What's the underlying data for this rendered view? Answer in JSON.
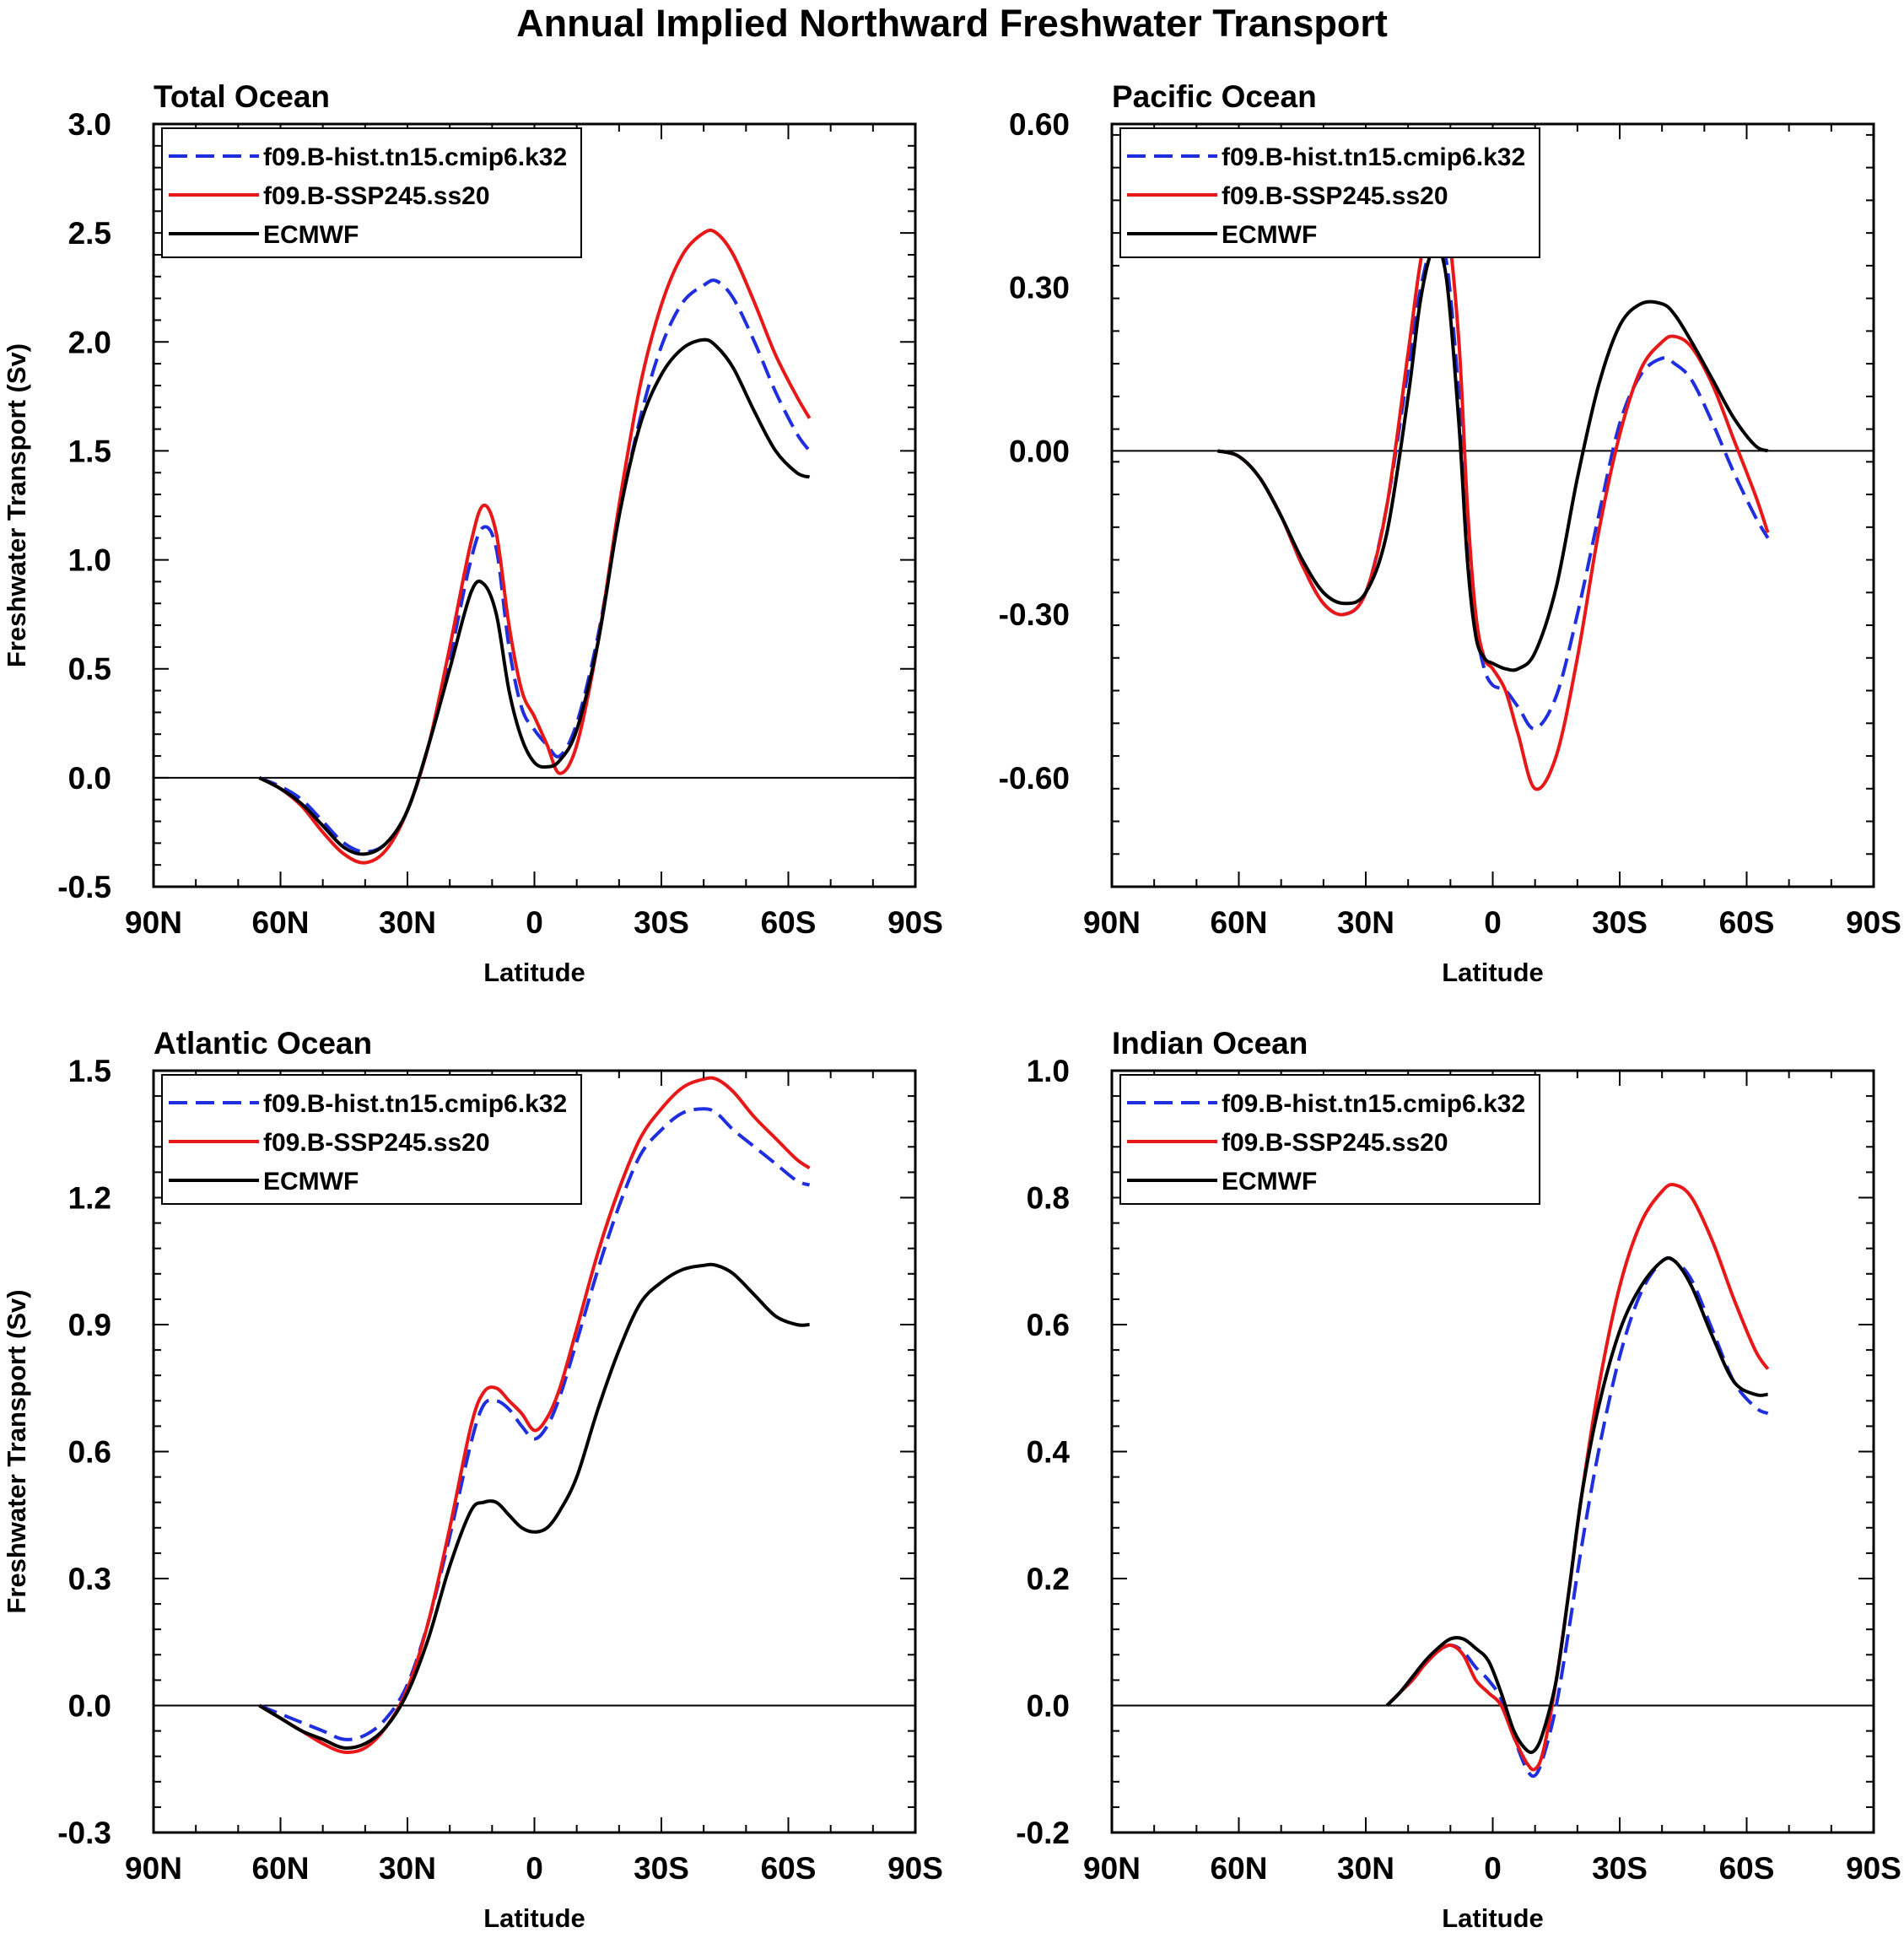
{
  "figure": {
    "title": "Annual Implied Northward Freshwater Transport"
  },
  "style": {
    "colors": {
      "f09.B-hist.tn15.cmip6.k32": "#1f2fe0",
      "f09.B-SSP245.ss20": "#e81818",
      "ECMWF": "#000000"
    },
    "dash": {
      "f09.B-hist.tn15.cmip6.k32": "dashed",
      "f09.B-SSP245.ss20": "solid",
      "ECMWF": "solid"
    }
  },
  "chart_data": [
    {
      "type": "line",
      "title": "Total Ocean",
      "xlabel": "Latitude",
      "ylabel": "Freshwater Transport (Sv)",
      "xlim": [
        -90,
        90
      ],
      "x_note": "positive = degrees N, negative = degrees S",
      "xticks": [
        90,
        60,
        30,
        0,
        -30,
        -60,
        -90
      ],
      "xticklabels": [
        "90N",
        "60N",
        "30N",
        "0",
        "30S",
        "60S",
        "90S"
      ],
      "ylim": [
        -0.5,
        3.0
      ],
      "yticks": [
        -0.5,
        0.0,
        0.5,
        1.0,
        1.5,
        2.0,
        2.5,
        3.0
      ],
      "yticklabels": [
        "-0.5",
        "0.0",
        "0.5",
        "1.0",
        "1.5",
        "2.0",
        "2.5",
        "3.0"
      ],
      "zero_line": true,
      "legend": {
        "placement": "top-left",
        "entries": [
          "f09.B-hist.tn15.cmip6.k32",
          "f09.B-SSP245.ss20",
          "ECMWF"
        ]
      },
      "series": [
        {
          "name": "f09.B-hist.tn15.cmip6.k32",
          "x": [
            65,
            60,
            55,
            50,
            45,
            40,
            35,
            30,
            25,
            20,
            15,
            12,
            9,
            6,
            3,
            0,
            -3,
            -6,
            -10,
            -15,
            -20,
            -25,
            -30,
            -35,
            -40,
            -43,
            -47,
            -52,
            -57,
            -62,
            -65
          ],
          "y": [
            0,
            -0.04,
            -0.1,
            -0.2,
            -0.3,
            -0.34,
            -0.3,
            -0.15,
            0.15,
            0.55,
            1.0,
            1.15,
            1.05,
            0.6,
            0.32,
            0.22,
            0.15,
            0.1,
            0.25,
            0.65,
            1.2,
            1.65,
            1.98,
            2.18,
            2.26,
            2.28,
            2.2,
            2.0,
            1.77,
            1.58,
            1.5
          ]
        },
        {
          "name": "f09.B-SSP245.ss20",
          "x": [
            65,
            60,
            55,
            50,
            45,
            40,
            35,
            30,
            25,
            20,
            15,
            12,
            9,
            6,
            3,
            0,
            -3,
            -6,
            -10,
            -15,
            -20,
            -25,
            -30,
            -35,
            -40,
            -43,
            -47,
            -52,
            -57,
            -62,
            -65
          ],
          "y": [
            0,
            -0.05,
            -0.13,
            -0.25,
            -0.35,
            -0.39,
            -0.33,
            -0.15,
            0.15,
            0.6,
            1.08,
            1.25,
            1.12,
            0.7,
            0.4,
            0.28,
            0.15,
            0.02,
            0.15,
            0.62,
            1.25,
            1.8,
            2.17,
            2.4,
            2.5,
            2.5,
            2.4,
            2.18,
            1.94,
            1.75,
            1.65
          ]
        },
        {
          "name": "ECMWF",
          "x": [
            65,
            60,
            55,
            50,
            45,
            40,
            35,
            30,
            25,
            20,
            15,
            12,
            9,
            6,
            3,
            0,
            -3,
            -6,
            -10,
            -15,
            -20,
            -25,
            -30,
            -35,
            -40,
            -43,
            -47,
            -52,
            -57,
            -62,
            -65
          ],
          "y": [
            0,
            -0.05,
            -0.12,
            -0.22,
            -0.32,
            -0.35,
            -0.3,
            -0.15,
            0.15,
            0.5,
            0.85,
            0.89,
            0.75,
            0.4,
            0.18,
            0.07,
            0.05,
            0.08,
            0.22,
            0.62,
            1.2,
            1.62,
            1.85,
            1.97,
            2.01,
            1.98,
            1.88,
            1.68,
            1.5,
            1.4,
            1.38
          ]
        }
      ]
    },
    {
      "type": "line",
      "title": "Pacific Ocean",
      "xlabel": "Latitude",
      "ylabel": "",
      "xlim": [
        -90,
        90
      ],
      "x_note": "positive = degrees N, negative = degrees S",
      "xticks": [
        90,
        60,
        30,
        0,
        -30,
        -60,
        -90
      ],
      "xticklabels": [
        "90N",
        "60N",
        "30N",
        "0",
        "30S",
        "60S",
        "90S"
      ],
      "ylim": [
        -0.8,
        0.6
      ],
      "yticks": [
        -0.6,
        -0.3,
        0.0,
        0.3,
        0.6
      ],
      "yticklabels": [
        "-0.60",
        "-0.30",
        "0.00",
        "0.30",
        "0.60"
      ],
      "zero_line": true,
      "legend": {
        "placement": "top-left",
        "entries": [
          "f09.B-hist.tn15.cmip6.k32",
          "f09.B-SSP245.ss20",
          "ECMWF"
        ]
      },
      "series": [
        {
          "name": "f09.B-hist.tn15.cmip6.k32",
          "x": [
            65,
            60,
            55,
            50,
            45,
            40,
            35,
            30,
            25,
            20,
            17,
            14,
            11,
            8,
            6,
            4,
            2,
            0,
            -3,
            -6,
            -10,
            -15,
            -20,
            -25,
            -30,
            -35,
            -40,
            -43,
            -47,
            -52,
            -57,
            -62,
            -65
          ],
          "y": [
            0,
            -0.01,
            -0.05,
            -0.12,
            -0.21,
            -0.28,
            -0.3,
            -0.26,
            -0.1,
            0.15,
            0.3,
            0.38,
            0.35,
            0.1,
            -0.15,
            -0.32,
            -0.4,
            -0.43,
            -0.44,
            -0.47,
            -0.51,
            -0.45,
            -0.3,
            -0.12,
            0.05,
            0.14,
            0.17,
            0.16,
            0.13,
            0.05,
            -0.04,
            -0.12,
            -0.16
          ]
        },
        {
          "name": "f09.B-SSP245.ss20",
          "x": [
            65,
            60,
            55,
            50,
            45,
            40,
            35,
            30,
            25,
            20,
            17,
            14,
            11,
            8,
            6,
            4,
            2,
            0,
            -3,
            -6,
            -10,
            -15,
            -20,
            -25,
            -30,
            -35,
            -40,
            -43,
            -47,
            -52,
            -57,
            -62,
            -65
          ],
          "y": [
            0,
            -0.01,
            -0.05,
            -0.12,
            -0.21,
            -0.28,
            -0.3,
            -0.26,
            -0.1,
            0.18,
            0.35,
            0.45,
            0.43,
            0.2,
            -0.1,
            -0.3,
            -0.38,
            -0.4,
            -0.44,
            -0.52,
            -0.62,
            -0.56,
            -0.38,
            -0.15,
            0.03,
            0.15,
            0.2,
            0.21,
            0.19,
            0.12,
            0.02,
            -0.08,
            -0.15
          ]
        },
        {
          "name": "ECMWF",
          "x": [
            65,
            60,
            55,
            50,
            45,
            40,
            35,
            30,
            25,
            20,
            17,
            14,
            11,
            8,
            6,
            4,
            2,
            0,
            -3,
            -6,
            -10,
            -15,
            -20,
            -25,
            -30,
            -35,
            -40,
            -43,
            -47,
            -52,
            -57,
            -62,
            -65
          ],
          "y": [
            0,
            -0.01,
            -0.05,
            -0.12,
            -0.2,
            -0.26,
            -0.28,
            -0.26,
            -0.15,
            0.1,
            0.28,
            0.37,
            0.32,
            0.05,
            -0.2,
            -0.34,
            -0.38,
            -0.39,
            -0.4,
            -0.4,
            -0.37,
            -0.25,
            -0.05,
            0.12,
            0.23,
            0.27,
            0.27,
            0.25,
            0.2,
            0.13,
            0.06,
            0.01,
            0.0
          ]
        }
      ]
    },
    {
      "type": "line",
      "title": "Atlantic Ocean",
      "xlabel": "Latitude",
      "ylabel": "Freshwater Transport (Sv)",
      "xlim": [
        -90,
        90
      ],
      "x_note": "positive = degrees N, negative = degrees S",
      "xticks": [
        90,
        60,
        30,
        0,
        -30,
        -60,
        -90
      ],
      "xticklabels": [
        "90N",
        "60N",
        "30N",
        "0",
        "30S",
        "60S",
        "90S"
      ],
      "ylim": [
        -0.3,
        1.5
      ],
      "yticks": [
        -0.3,
        0.0,
        0.3,
        0.6,
        0.9,
        1.2,
        1.5
      ],
      "yticklabels": [
        "-0.3",
        "0.0",
        "0.3",
        "0.6",
        "0.9",
        "1.2",
        "1.5"
      ],
      "zero_line": true,
      "legend": {
        "placement": "top-left",
        "entries": [
          "f09.B-hist.tn15.cmip6.k32",
          "f09.B-SSP245.ss20",
          "ECMWF"
        ]
      },
      "series": [
        {
          "name": "f09.B-hist.tn15.cmip6.k32",
          "x": [
            65,
            60,
            55,
            50,
            45,
            40,
            35,
            30,
            25,
            20,
            15,
            12,
            9,
            6,
            3,
            0,
            -3,
            -6,
            -10,
            -15,
            -20,
            -25,
            -30,
            -35,
            -40,
            -43,
            -47,
            -52,
            -57,
            -62,
            -65
          ],
          "y": [
            0,
            -0.02,
            -0.04,
            -0.06,
            -0.08,
            -0.07,
            -0.03,
            0.05,
            0.2,
            0.4,
            0.62,
            0.71,
            0.72,
            0.7,
            0.66,
            0.63,
            0.66,
            0.73,
            0.86,
            1.03,
            1.18,
            1.3,
            1.36,
            1.4,
            1.41,
            1.4,
            1.36,
            1.32,
            1.28,
            1.24,
            1.23
          ]
        },
        {
          "name": "f09.B-SSP245.ss20",
          "x": [
            65,
            60,
            55,
            50,
            45,
            40,
            35,
            30,
            25,
            20,
            15,
            12,
            9,
            6,
            3,
            0,
            -3,
            -6,
            -10,
            -15,
            -20,
            -25,
            -30,
            -35,
            -40,
            -43,
            -47,
            -52,
            -57,
            -62,
            -65
          ],
          "y": [
            0,
            -0.03,
            -0.06,
            -0.09,
            -0.11,
            -0.1,
            -0.05,
            0.04,
            0.2,
            0.42,
            0.66,
            0.74,
            0.75,
            0.72,
            0.69,
            0.65,
            0.68,
            0.75,
            0.89,
            1.07,
            1.22,
            1.34,
            1.41,
            1.46,
            1.48,
            1.48,
            1.45,
            1.39,
            1.34,
            1.29,
            1.27
          ]
        },
        {
          "name": "ECMWF",
          "x": [
            65,
            60,
            55,
            50,
            45,
            40,
            35,
            30,
            25,
            20,
            15,
            12,
            9,
            6,
            3,
            0,
            -3,
            -6,
            -10,
            -15,
            -20,
            -25,
            -30,
            -35,
            -40,
            -43,
            -47,
            -52,
            -57,
            -62,
            -65
          ],
          "y": [
            0,
            -0.03,
            -0.06,
            -0.08,
            -0.1,
            -0.09,
            -0.05,
            0.03,
            0.16,
            0.33,
            0.46,
            0.48,
            0.48,
            0.45,
            0.42,
            0.41,
            0.42,
            0.46,
            0.54,
            0.7,
            0.84,
            0.95,
            1.0,
            1.03,
            1.04,
            1.04,
            1.02,
            0.97,
            0.92,
            0.9,
            0.9
          ]
        }
      ]
    },
    {
      "type": "line",
      "title": "Indian Ocean",
      "xlabel": "Latitude",
      "ylabel": "",
      "xlim": [
        -90,
        90
      ],
      "x_note": "positive = degrees N, negative = degrees S",
      "xticks": [
        90,
        60,
        30,
        0,
        -30,
        -60,
        -90
      ],
      "xticklabels": [
        "90N",
        "60N",
        "30N",
        "0",
        "30S",
        "60S",
        "90S"
      ],
      "ylim": [
        -0.2,
        1.0
      ],
      "yticks": [
        -0.2,
        0.0,
        0.2,
        0.4,
        0.6,
        0.8,
        1.0
      ],
      "yticklabels": [
        "-0.2",
        "0.0",
        "0.2",
        "0.4",
        "0.6",
        "0.8",
        "1.0"
      ],
      "zero_line": true,
      "legend": {
        "placement": "top-left",
        "entries": [
          "f09.B-hist.tn15.cmip6.k32",
          "f09.B-SSP245.ss20",
          "ECMWF"
        ]
      },
      "series": [
        {
          "name": "f09.B-hist.tn15.cmip6.k32",
          "x": [
            25,
            22,
            19,
            16,
            13,
            10,
            7,
            4,
            1,
            -2,
            -5,
            -8,
            -10,
            -12,
            -15,
            -18,
            -21,
            -25,
            -30,
            -35,
            -40,
            -43,
            -47,
            -52,
            -57,
            -62,
            -65
          ],
          "y": [
            0,
            0.02,
            0.04,
            0.065,
            0.085,
            0.095,
            0.085,
            0.06,
            0.04,
            0.01,
            -0.05,
            -0.1,
            -0.11,
            -0.08,
            0.0,
            0.12,
            0.25,
            0.4,
            0.55,
            0.65,
            0.7,
            0.7,
            0.67,
            0.59,
            0.51,
            0.47,
            0.46
          ]
        },
        {
          "name": "f09.B-SSP245.ss20",
          "x": [
            25,
            22,
            19,
            16,
            13,
            10,
            7,
            4,
            1,
            -2,
            -5,
            -8,
            -10,
            -12,
            -15,
            -18,
            -21,
            -25,
            -30,
            -35,
            -40,
            -43,
            -47,
            -52,
            -57,
            -62,
            -65
          ],
          "y": [
            0,
            0.02,
            0.04,
            0.065,
            0.085,
            0.095,
            0.08,
            0.04,
            0.02,
            0.0,
            -0.05,
            -0.09,
            -0.1,
            -0.07,
            0.04,
            0.18,
            0.33,
            0.5,
            0.66,
            0.76,
            0.81,
            0.82,
            0.8,
            0.73,
            0.64,
            0.56,
            0.53
          ]
        },
        {
          "name": "ECMWF",
          "x": [
            25,
            22,
            19,
            16,
            13,
            10,
            7,
            4,
            1,
            -2,
            -5,
            -8,
            -10,
            -12,
            -15,
            -18,
            -21,
            -25,
            -30,
            -35,
            -40,
            -43,
            -47,
            -52,
            -57,
            -62,
            -65
          ],
          "y": [
            0,
            0.02,
            0.045,
            0.07,
            0.09,
            0.105,
            0.105,
            0.09,
            0.07,
            0.02,
            -0.04,
            -0.07,
            -0.07,
            -0.04,
            0.04,
            0.18,
            0.33,
            0.47,
            0.59,
            0.66,
            0.7,
            0.7,
            0.66,
            0.58,
            0.51,
            0.49,
            0.49
          ]
        }
      ]
    }
  ]
}
